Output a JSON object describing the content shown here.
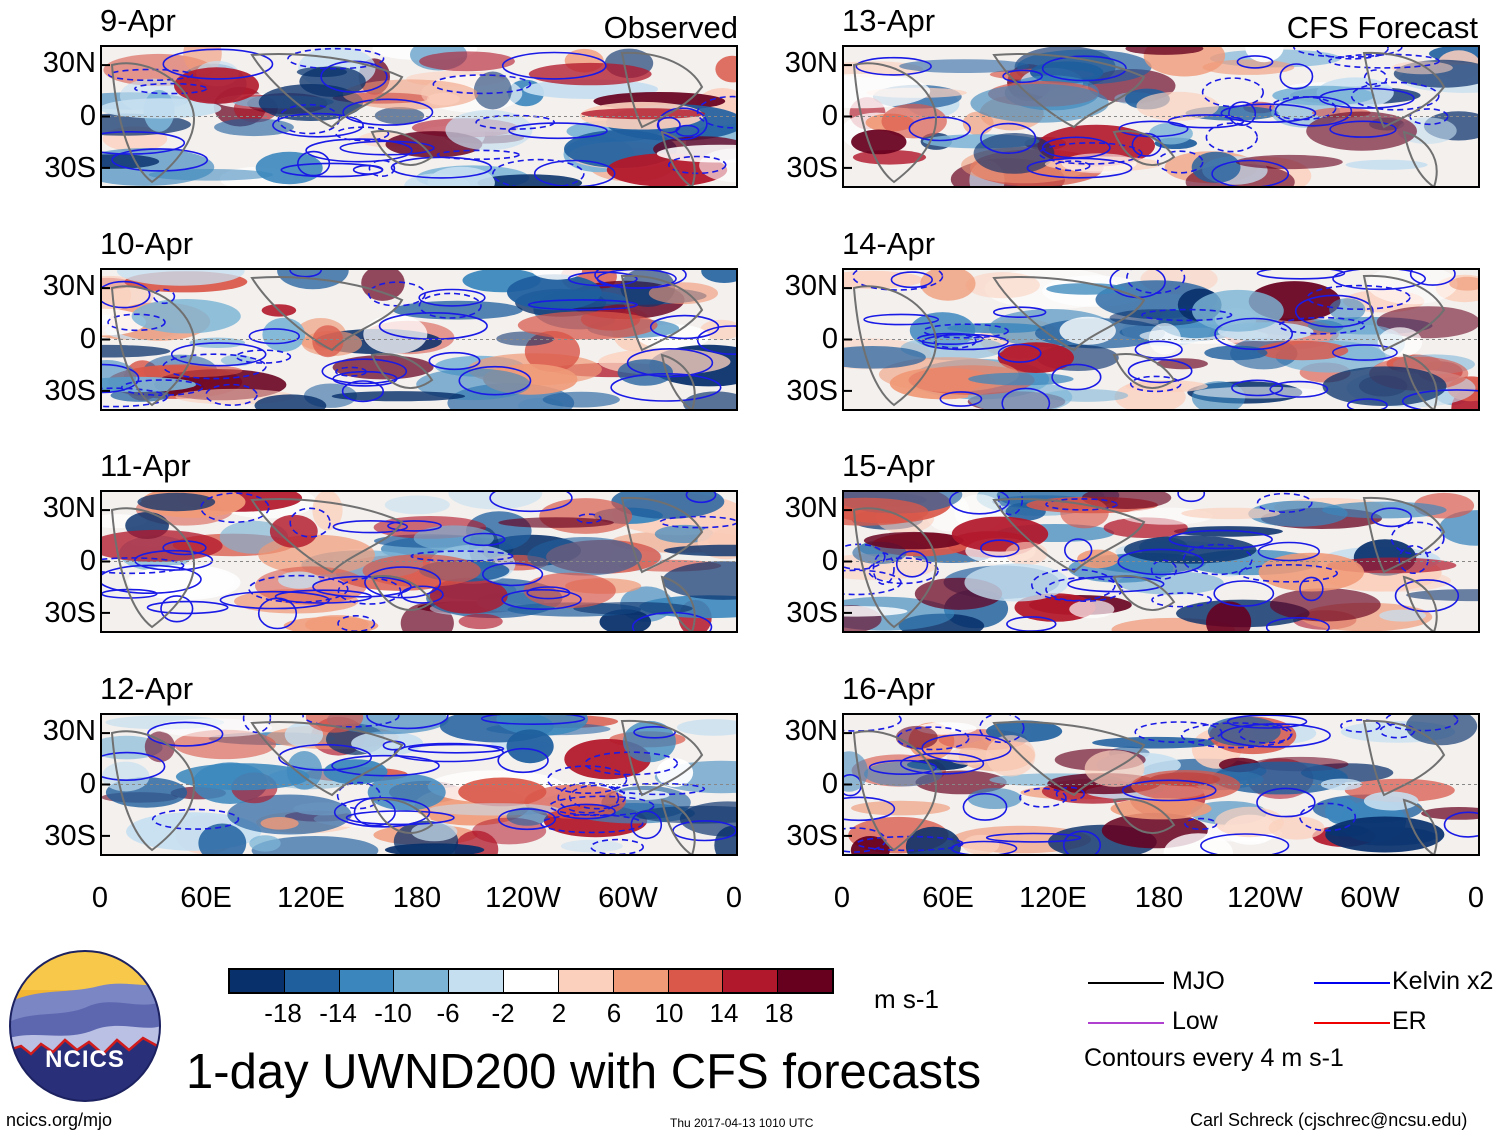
{
  "title": "1-day UWND200 with CFS forecasts",
  "header": {
    "observed_label": "Observed",
    "forecast_label": "CFS Forecast"
  },
  "panels": {
    "observed": [
      "9-Apr",
      "10-Apr",
      "11-Apr",
      "12-Apr"
    ],
    "forecast": [
      "13-Apr",
      "14-Apr",
      "15-Apr",
      "16-Apr"
    ]
  },
  "lat_labels": [
    "30N",
    "0",
    "30S"
  ],
  "lon_labels": [
    "0",
    "60E",
    "120E",
    "180",
    "120W",
    "60W",
    "0"
  ],
  "colorbar": {
    "labels": [
      "-18",
      "-14",
      "-10",
      "-6",
      "-2",
      "2",
      "6",
      "10",
      "14",
      "18"
    ],
    "units": "m s-1",
    "colors": [
      "#08306b",
      "#1f5f9e",
      "#3b87bd",
      "#7cb4d6",
      "#c6dff0",
      "#ffffff",
      "#fbd0bd",
      "#f09a78",
      "#d9584a",
      "#b2182b",
      "#67001f"
    ]
  },
  "legend": {
    "items": [
      {
        "label": "MJO",
        "color": "#000000"
      },
      {
        "label": "Kelvin x2",
        "color": "#0000ee"
      },
      {
        "label": "Low",
        "color": "#b040d0"
      },
      {
        "label": "ER",
        "color": "#ee0000"
      }
    ],
    "note": "Contours every 4 m s-1"
  },
  "logo": {
    "text": "NCICS"
  },
  "footer": {
    "url": "ncics.org/mjo",
    "timestamp": "Thu 2017-04-13 1010 UTC",
    "author": "Carl Schreck (cjschrec@ncsu.edu)"
  }
}
